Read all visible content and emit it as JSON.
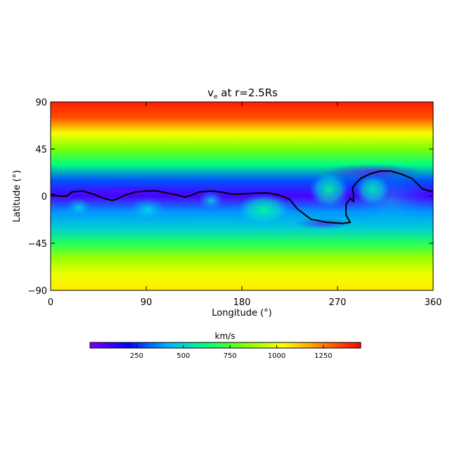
{
  "chart_data": {
    "type": "heatmap",
    "title": "vₑ at r=2.5Rs",
    "title_main": "v",
    "title_sub": "e",
    "title_rest": " at r=2.5Rs",
    "xlabel": "Longitude (°)",
    "ylabel": "Latitude (°)",
    "xlim": [
      0,
      360
    ],
    "ylim": [
      -90,
      90
    ],
    "xticks": [
      0,
      90,
      180,
      270,
      360
    ],
    "yticks": [
      90,
      45,
      0,
      -45,
      -90
    ],
    "xtick_labels": [
      "0",
      "90",
      "180",
      "270",
      "360"
    ],
    "ytick_labels": [
      "90",
      "45",
      "0",
      "−45",
      "−90"
    ],
    "colorbar": {
      "label": "km/s",
      "range": [
        0,
        1450
      ],
      "ticks": [
        250,
        500,
        750,
        1000,
        1250
      ],
      "tick_labels": [
        "250",
        "500",
        "750",
        "1000",
        "1250"
      ],
      "colormap": [
        "#7a00ff",
        "#0000ff",
        "#00b4ff",
        "#00ff80",
        "#80ff00",
        "#ffff00",
        "#ff8000",
        "#ff0000"
      ]
    },
    "latitude_profile_kms": [
      {
        "lat": 90,
        "v": 1400
      },
      {
        "lat": 75,
        "v": 1320
      },
      {
        "lat": 60,
        "v": 1020
      },
      {
        "lat": 45,
        "v": 820
      },
      {
        "lat": 30,
        "v": 620
      },
      {
        "lat": 15,
        "v": 300
      },
      {
        "lat": 0,
        "v": 80
      },
      {
        "lat": -15,
        "v": 380
      },
      {
        "lat": -30,
        "v": 480
      },
      {
        "lat": -45,
        "v": 680
      },
      {
        "lat": -60,
        "v": 880
      },
      {
        "lat": -75,
        "v": 1010
      },
      {
        "lat": -90,
        "v": 1070
      }
    ],
    "neutral_line": [
      [
        0,
        2
      ],
      [
        8,
        0
      ],
      [
        15,
        0
      ],
      [
        20,
        4
      ],
      [
        30,
        5
      ],
      [
        40,
        2
      ],
      [
        50,
        -2
      ],
      [
        58,
        -4
      ],
      [
        62,
        -3
      ],
      [
        70,
        1
      ],
      [
        80,
        4
      ],
      [
        90,
        5
      ],
      [
        100,
        5
      ],
      [
        110,
        3
      ],
      [
        120,
        1
      ],
      [
        126,
        -1
      ],
      [
        130,
        0
      ],
      [
        140,
        4
      ],
      [
        150,
        5
      ],
      [
        160,
        4
      ],
      [
        170,
        2
      ],
      [
        180,
        2
      ],
      [
        195,
        3
      ],
      [
        205,
        3
      ],
      [
        215,
        1
      ],
      [
        225,
        -3
      ],
      [
        232,
        -12
      ],
      [
        245,
        -22
      ],
      [
        260,
        -25
      ],
      [
        275,
        -26
      ],
      [
        282,
        -25
      ],
      [
        278,
        -18
      ],
      [
        278,
        -8
      ],
      [
        282,
        -2
      ],
      [
        285,
        -5
      ],
      [
        285,
        2
      ],
      [
        284,
        8
      ],
      [
        287,
        12
      ],
      [
        292,
        17
      ],
      [
        300,
        21
      ],
      [
        310,
        24
      ],
      [
        320,
        24
      ],
      [
        330,
        21
      ],
      [
        340,
        17
      ],
      [
        345,
        12
      ],
      [
        350,
        7
      ],
      [
        360,
        4
      ]
    ]
  }
}
